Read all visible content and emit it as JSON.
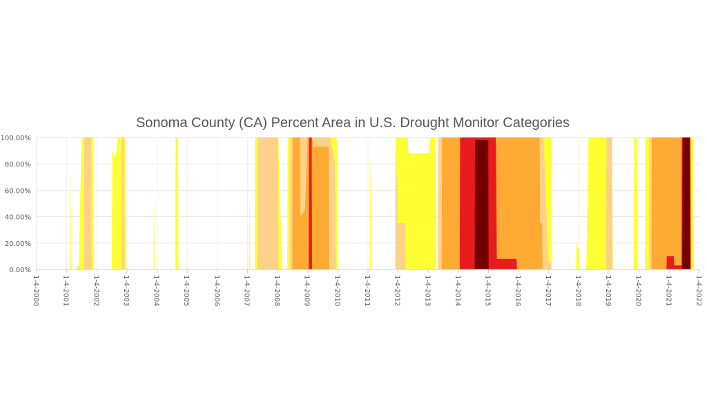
{
  "chart_data": {
    "type": "area",
    "title": "Sonoma County (CA) Percent Area in U.S. Drought Monitor Categories",
    "xlabel": "",
    "ylabel": "",
    "x_range": [
      "2000-01-04",
      "2022-01-04"
    ],
    "ylim": [
      0,
      100
    ],
    "y_ticks": [
      "0.00%",
      "20.00%",
      "40.00%",
      "60.00%",
      "80.00%",
      "100.00%"
    ],
    "x_ticks": [
      "1-4-2000",
      "1-4-2001",
      "1-4-2002",
      "1-4-2003",
      "1-4-2004",
      "1-4-2005",
      "1-4-2006",
      "1-4-2007",
      "1-4-2008",
      "1-4-2009",
      "1-4-2010",
      "1-4-2011",
      "1-4-2012",
      "1-4-2013",
      "1-4-2014",
      "1-4-2015",
      "1-4-2016",
      "1-4-2017",
      "1-4-2018",
      "1-4-2019",
      "1-4-2020",
      "1-4-2021",
      "1-4-2022"
    ],
    "grid": true,
    "colors": {
      "D0": "#ffff33",
      "D1": "#fcd28a",
      "D2": "#ffaa33",
      "D3": "#e81c1c",
      "D4": "#730000"
    },
    "series": [
      {
        "key": "D0",
        "color": "#ffff33",
        "points": [
          [
            "2001-02-15",
            0
          ],
          [
            "2001-02-22",
            76
          ],
          [
            "2001-03-01",
            0
          ],
          [
            "2001-05-01",
            0
          ],
          [
            "2001-05-08",
            3
          ],
          [
            "2001-06-01",
            3
          ],
          [
            "2001-07-01",
            100
          ],
          [
            "2001-11-25",
            100
          ],
          [
            "2001-12-01",
            0
          ],
          [
            "2002-07-05",
            0
          ],
          [
            "2002-07-10",
            90
          ],
          [
            "2002-08-20",
            85
          ],
          [
            "2002-09-15",
            100
          ],
          [
            "2002-12-20",
            100
          ],
          [
            "2002-12-28",
            0
          ],
          [
            "2003-11-20",
            0
          ],
          [
            "2003-11-27",
            58
          ],
          [
            "2003-12-05",
            0
          ],
          [
            "2004-08-10",
            0
          ],
          [
            "2004-08-15",
            100
          ],
          [
            "2004-09-15",
            100
          ],
          [
            "2004-09-20",
            0
          ],
          [
            "2007-01-20",
            0
          ],
          [
            "2007-01-27",
            60
          ],
          [
            "2007-02-05",
            0
          ],
          [
            "2007-04-01",
            0
          ],
          [
            "2007-04-05",
            100
          ],
          [
            "2008-01-15",
            100
          ],
          [
            "2008-01-20",
            80
          ],
          [
            "2008-03-01",
            0
          ],
          [
            "2008-05-01",
            0
          ],
          [
            "2008-05-05",
            100
          ],
          [
            "2009-12-20",
            100
          ],
          [
            "2010-01-05",
            0
          ],
          [
            "2011-01-25",
            0
          ],
          [
            "2011-02-01",
            92
          ],
          [
            "2011-02-10",
            0
          ],
          [
            "2011-12-01",
            0
          ],
          [
            "2011-12-05",
            100
          ],
          [
            "2012-05-01",
            100
          ],
          [
            "2012-05-10",
            88
          ],
          [
            "2013-01-10",
            88
          ],
          [
            "2013-02-01",
            100
          ],
          [
            "2013-04-01",
            100
          ],
          [
            "2013-04-10",
            0
          ],
          [
            "2013-07-15",
            0
          ],
          [
            "2013-07-20",
            100
          ],
          [
            "2017-02-01",
            100
          ],
          [
            "2017-02-08",
            0
          ],
          [
            "2017-12-01",
            0
          ],
          [
            "2017-12-05",
            20
          ],
          [
            "2018-01-05",
            15
          ],
          [
            "2018-01-10",
            0
          ],
          [
            "2018-04-01",
            0
          ],
          [
            "2018-04-05",
            5
          ],
          [
            "2018-05-01",
            100
          ],
          [
            "2019-02-10",
            100
          ],
          [
            "2019-02-20",
            0
          ],
          [
            "2019-11-01",
            0
          ],
          [
            "2019-11-05",
            100
          ],
          [
            "2019-12-10",
            100
          ],
          [
            "2019-12-15",
            0
          ],
          [
            "2020-03-15",
            0
          ],
          [
            "2020-03-20",
            100
          ],
          [
            "2021-10-20",
            100
          ],
          [
            "2021-10-28",
            0
          ]
        ]
      },
      {
        "key": "D1",
        "color": "#fcd28a",
        "points": [
          [
            "2001-08-01",
            0
          ],
          [
            "2001-08-05",
            100
          ],
          [
            "2001-10-25",
            100
          ],
          [
            "2001-11-01",
            0
          ],
          [
            "2002-11-01",
            0
          ],
          [
            "2002-11-05",
            100
          ],
          [
            "2002-12-01",
            100
          ],
          [
            "2002-12-05",
            0
          ],
          [
            "2007-05-01",
            0
          ],
          [
            "2007-05-05",
            100
          ],
          [
            "2008-01-10",
            100
          ],
          [
            "2008-01-15",
            0
          ],
          [
            "2008-06-01",
            0
          ],
          [
            "2008-06-05",
            100
          ],
          [
            "2009-10-01",
            100
          ],
          [
            "2009-12-01",
            80
          ],
          [
            "2009-12-10",
            0
          ],
          [
            "2011-12-01",
            0
          ],
          [
            "2011-12-05",
            100
          ],
          [
            "2012-01-01",
            35
          ],
          [
            "2012-04-01",
            35
          ],
          [
            "2012-04-05",
            0
          ],
          [
            "2013-05-01",
            0
          ],
          [
            "2013-05-05",
            100
          ],
          [
            "2016-11-01",
            100
          ],
          [
            "2017-01-01",
            5
          ],
          [
            "2017-02-01",
            5
          ],
          [
            "2017-02-05",
            0
          ],
          [
            "2018-12-01",
            0
          ],
          [
            "2018-12-05",
            100
          ],
          [
            "2019-02-10",
            100
          ],
          [
            "2019-02-15",
            0
          ],
          [
            "2020-05-01",
            0
          ],
          [
            "2020-05-05",
            100
          ],
          [
            "2021-03-01",
            100
          ],
          [
            "2021-03-05",
            57
          ],
          [
            "2021-05-01",
            60
          ],
          [
            "2021-05-05",
            0
          ]
        ]
      },
      {
        "key": "D2",
        "color": "#ffaa33",
        "points": [
          [
            "2008-07-01",
            0
          ],
          [
            "2008-07-05",
            100
          ],
          [
            "2008-10-01",
            100
          ],
          [
            "2008-10-05",
            40
          ],
          [
            "2008-12-01",
            45
          ],
          [
            "2009-01-01",
            100
          ],
          [
            "2009-03-01",
            100
          ],
          [
            "2009-03-05",
            93
          ],
          [
            "2009-09-15",
            93
          ],
          [
            "2009-09-20",
            0
          ],
          [
            "2013-06-15",
            0
          ],
          [
            "2013-06-20",
            100
          ],
          [
            "2016-09-15",
            100
          ],
          [
            "2016-09-20",
            35
          ],
          [
            "2016-10-15",
            35
          ],
          [
            "2016-10-20",
            0
          ],
          [
            "2020-06-01",
            0
          ],
          [
            "2020-06-05",
            100
          ],
          [
            "2021-08-01",
            100
          ],
          [
            "2021-08-05",
            80
          ],
          [
            "2021-09-01",
            100
          ],
          [
            "2021-09-20",
            100
          ],
          [
            "2021-09-25",
            0
          ]
        ]
      },
      {
        "key": "D3",
        "color": "#e81c1c",
        "points": [
          [
            "2009-01-15",
            0
          ],
          [
            "2009-01-20",
            100
          ],
          [
            "2009-02-20",
            100
          ],
          [
            "2009-02-25",
            0
          ],
          [
            "2014-01-20",
            0
          ],
          [
            "2014-01-25",
            100
          ],
          [
            "2015-04-01",
            100
          ],
          [
            "2015-04-05",
            90
          ],
          [
            "2015-04-15",
            8
          ],
          [
            "2015-12-10",
            8
          ],
          [
            "2015-12-15",
            0
          ],
          [
            "2020-12-01",
            0
          ],
          [
            "2020-12-05",
            10
          ],
          [
            "2021-03-01",
            10
          ],
          [
            "2021-03-05",
            3
          ],
          [
            "2021-06-01",
            3
          ],
          [
            "2021-06-05",
            100
          ],
          [
            "2021-09-15",
            100
          ],
          [
            "2021-09-20",
            0
          ]
        ]
      },
      {
        "key": "D4",
        "color": "#730000",
        "points": [
          [
            "2014-07-20",
            0
          ],
          [
            "2014-07-25",
            98
          ],
          [
            "2015-01-01",
            98
          ],
          [
            "2015-01-05",
            0
          ],
          [
            "2021-06-10",
            0
          ],
          [
            "2021-06-15",
            100
          ],
          [
            "2021-09-10",
            100
          ],
          [
            "2021-09-15",
            0
          ]
        ]
      }
    ]
  }
}
